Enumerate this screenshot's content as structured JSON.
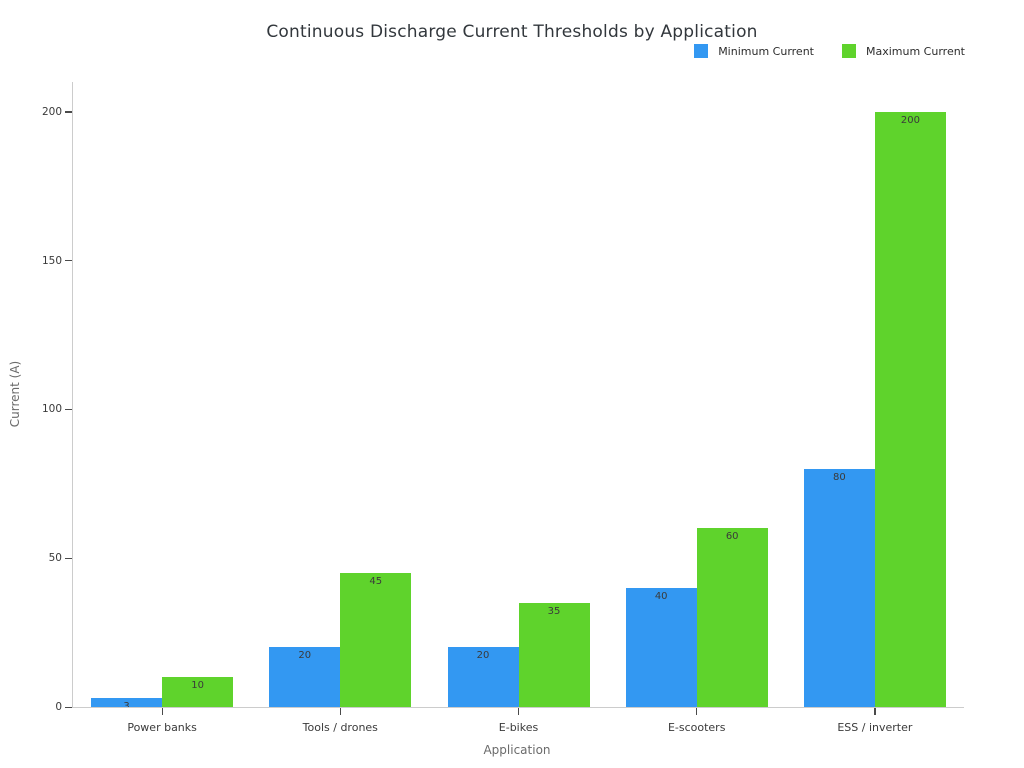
{
  "chart_data": {
    "type": "bar",
    "title": "Continuous Discharge Current Thresholds by Application",
    "xlabel": "Application",
    "ylabel": "Current (A)",
    "categories": [
      "Power banks",
      "Tools / drones",
      "E-bikes",
      "E-scooters",
      "ESS / inverter"
    ],
    "series": [
      {
        "name": "Minimum Current",
        "color": "#3398f2",
        "values": [
          3,
          20,
          20,
          40,
          80
        ]
      },
      {
        "name": "Maximum Current",
        "color": "#5fd32c",
        "values": [
          10,
          45,
          35,
          60,
          200
        ]
      }
    ],
    "ylim": [
      0,
      210
    ],
    "yticks": [
      0,
      50,
      100,
      150,
      200
    ],
    "grid": false,
    "legend_position": "top-right",
    "bar_value_labels": "inside-top",
    "background_color": "#ffffff",
    "spine_color": "#cccccc",
    "tick_color": "#4a4a4a",
    "text_color": "#3a3a3a",
    "title_color": "#32373c",
    "axis_label_color": "#6b6b6b"
  }
}
